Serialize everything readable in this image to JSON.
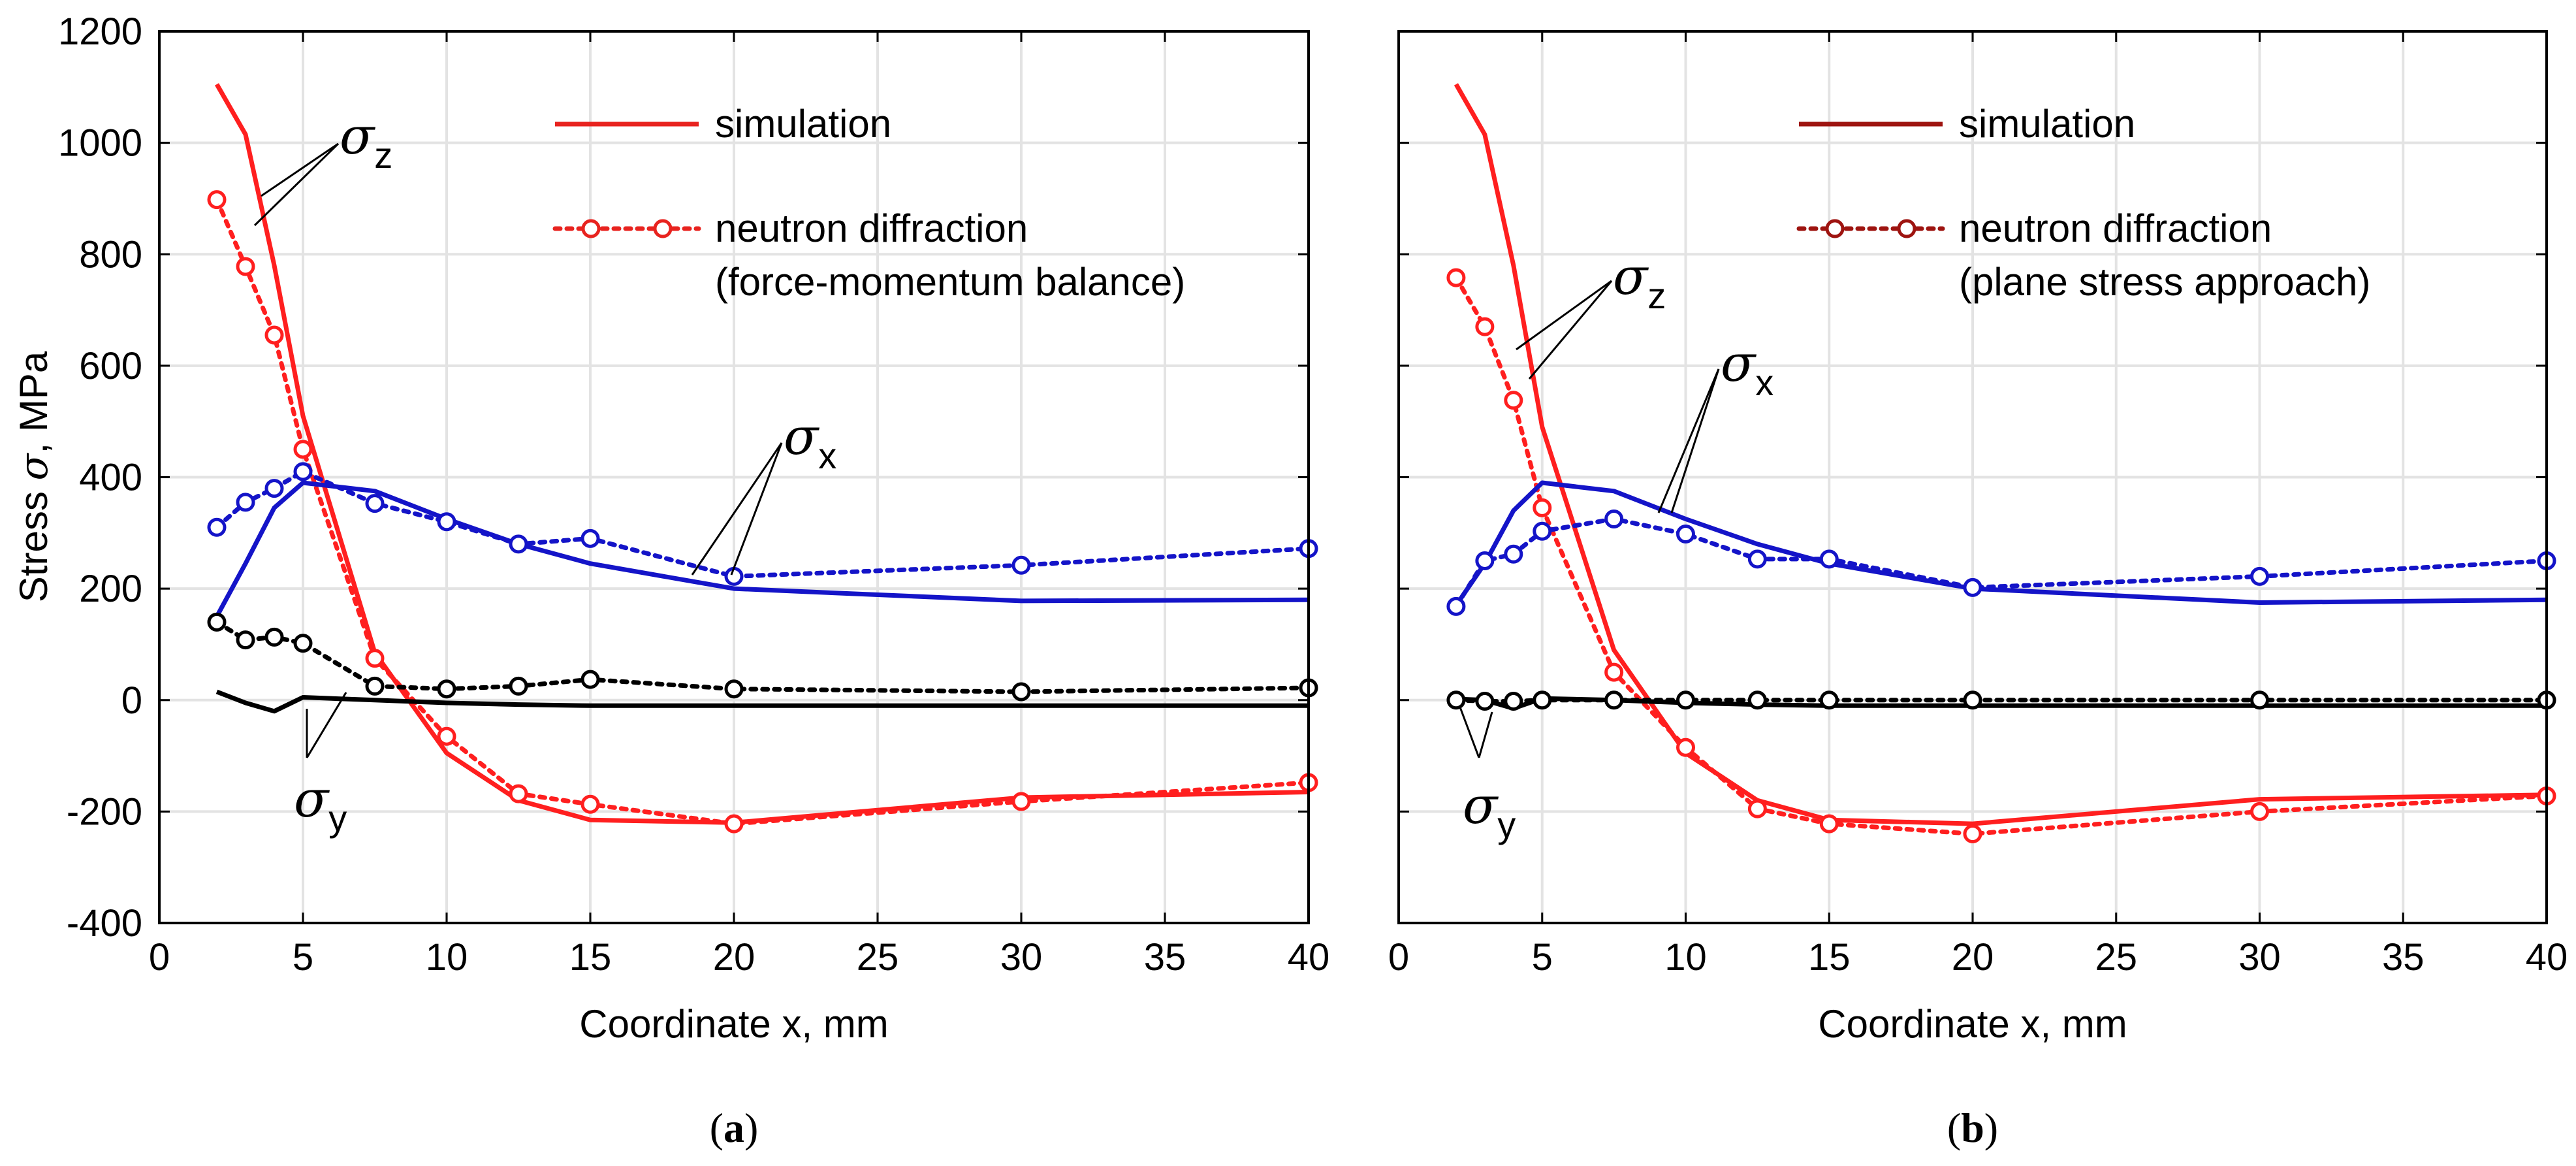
{
  "figure": {
    "ylabel_text": "Stress",
    "ylabel_symbol": "σ",
    "ylabel_unit": ", MPa"
  },
  "chart_data": [
    {
      "type": "line",
      "panel": "a",
      "panel_label": "a",
      "xlabel": "Coordinate x, mm",
      "ylabel": "Stress σ, MPa",
      "xlim": [
        0,
        40
      ],
      "ylim": [
        -400,
        1200
      ],
      "xticks": [
        0,
        5,
        10,
        15,
        20,
        25,
        30,
        35,
        40
      ],
      "yticks": [
        -400,
        -200,
        0,
        200,
        400,
        600,
        800,
        1000,
        1200
      ],
      "grid": true,
      "legend": {
        "position": "top-right",
        "simulation_label": "simulation",
        "simulation_color": "#e8231f",
        "experiment_label_1": "neutron diffraction",
        "experiment_label_2": "(force-momentum balance)",
        "experiment_color": "#e8231f"
      },
      "series": [
        {
          "name": "σz simulation",
          "component": "z",
          "kind": "simulation",
          "color": "#ff1f1f",
          "x": [
            2,
            3,
            4,
            5,
            7.5,
            10,
            12.5,
            15,
            20,
            30,
            40
          ],
          "y": [
            1105,
            1015,
            780,
            510,
            85,
            -95,
            -180,
            -215,
            -220,
            -175,
            -165
          ]
        },
        {
          "name": "σz neutron diffraction",
          "component": "z",
          "kind": "experiment",
          "color": "#ff1f1f",
          "x": [
            2,
            3,
            4,
            5,
            7.5,
            10,
            12.5,
            15,
            20,
            30,
            40
          ],
          "y": [
            898,
            778,
            655,
            450,
            75,
            -65,
            -168,
            -187,
            -222,
            -182,
            -148
          ]
        },
        {
          "name": "σx simulation",
          "component": "x",
          "kind": "simulation",
          "color": "#1414c8",
          "x": [
            2,
            3,
            4,
            5,
            7.5,
            10,
            12.5,
            15,
            20,
            30,
            40
          ],
          "y": [
            150,
            245,
            345,
            390,
            375,
            325,
            280,
            245,
            200,
            178,
            180
          ]
        },
        {
          "name": "σx neutron diffraction",
          "component": "x",
          "kind": "experiment",
          "color": "#1414c8",
          "x": [
            2,
            3,
            4,
            5,
            7.5,
            10,
            12.5,
            15,
            20,
            30,
            40
          ],
          "y": [
            310,
            355,
            380,
            410,
            353,
            320,
            280,
            290,
            222,
            242,
            272
          ]
        },
        {
          "name": "σy simulation",
          "component": "y",
          "kind": "simulation",
          "color": "#000000",
          "x": [
            2,
            3,
            4,
            5,
            7.5,
            10,
            12.5,
            15,
            20,
            30,
            40
          ],
          "y": [
            15,
            -5,
            -20,
            5,
            0,
            -5,
            -8,
            -10,
            -10,
            -10,
            -10
          ]
        },
        {
          "name": "σy neutron diffraction",
          "component": "y",
          "kind": "experiment",
          "color": "#000000",
          "x": [
            2,
            3,
            4,
            5,
            7.5,
            10,
            12.5,
            15,
            20,
            30,
            40
          ],
          "y": [
            140,
            108,
            113,
            102,
            25,
            20,
            25,
            37,
            20,
            15,
            22
          ]
        }
      ],
      "annotations": [
        {
          "symbol": "σ",
          "subscript": "z"
        },
        {
          "symbol": "σ",
          "subscript": "x"
        },
        {
          "symbol": "σ",
          "subscript": "y"
        }
      ]
    },
    {
      "type": "line",
      "panel": "b",
      "panel_label": "b",
      "xlabel": "Coordinate x, mm",
      "ylabel": "",
      "xlim": [
        0,
        40
      ],
      "ylim": [
        -400,
        1200
      ],
      "xticks": [
        0,
        5,
        10,
        15,
        20,
        25,
        30,
        35,
        40
      ],
      "yticks": [
        -400,
        -200,
        0,
        200,
        400,
        600,
        800,
        1000,
        1200
      ],
      "grid": true,
      "legend": {
        "position": "top-right",
        "simulation_label": "simulation",
        "simulation_color": "#9e1410",
        "experiment_label_1": "neutron diffraction",
        "experiment_label_2": "(plane stress approach)",
        "experiment_color": "#9e1410"
      },
      "series": [
        {
          "name": "σz simulation",
          "component": "z",
          "kind": "simulation",
          "color": "#ff1f1f",
          "x": [
            2,
            3,
            4,
            5,
            7.5,
            10,
            12.5,
            15,
            20,
            30,
            40
          ],
          "y": [
            1105,
            1015,
            780,
            490,
            90,
            -95,
            -180,
            -215,
            -222,
            -178,
            -170
          ]
        },
        {
          "name": "σz neutron diffraction",
          "component": "z",
          "kind": "experiment",
          "color": "#ff1f1f",
          "x": [
            2,
            3,
            4,
            5,
            7.5,
            10,
            12.5,
            15,
            20,
            30,
            40
          ],
          "y": [
            758,
            670,
            538,
            345,
            50,
            -85,
            -195,
            -222,
            -240,
            -200,
            -172
          ]
        },
        {
          "name": "σx simulation",
          "component": "x",
          "kind": "simulation",
          "color": "#1414c8",
          "x": [
            2,
            3,
            4,
            5,
            7.5,
            10,
            12.5,
            15,
            20,
            30,
            40
          ],
          "y": [
            170,
            245,
            340,
            390,
            375,
            325,
            280,
            245,
            200,
            175,
            180
          ]
        },
        {
          "name": "σx neutron diffraction",
          "component": "x",
          "kind": "experiment",
          "color": "#1414c8",
          "x": [
            2,
            3,
            4,
            5,
            7.5,
            10,
            12.5,
            15,
            20,
            30,
            40
          ],
          "y": [
            168,
            250,
            262,
            303,
            325,
            298,
            253,
            253,
            202,
            222,
            250
          ]
        },
        {
          "name": "σy simulation",
          "component": "y",
          "kind": "simulation",
          "color": "#000000",
          "x": [
            2,
            3,
            4,
            5,
            7.5,
            10,
            12.5,
            15,
            20,
            30,
            40
          ],
          "y": [
            2,
            0,
            -15,
            3,
            0,
            -5,
            -8,
            -10,
            -10,
            -10,
            -10
          ]
        },
        {
          "name": "σy neutron diffraction",
          "component": "y",
          "kind": "experiment",
          "color": "#000000",
          "x": [
            2,
            3,
            4,
            5,
            7.5,
            10,
            12.5,
            15,
            20,
            30,
            40
          ],
          "y": [
            0,
            -2,
            -2,
            0,
            0,
            0,
            0,
            0,
            0,
            0,
            0
          ]
        }
      ],
      "annotations": [
        {
          "symbol": "σ",
          "subscript": "z"
        },
        {
          "symbol": "σ",
          "subscript": "x"
        },
        {
          "symbol": "σ",
          "subscript": "y"
        }
      ]
    }
  ]
}
